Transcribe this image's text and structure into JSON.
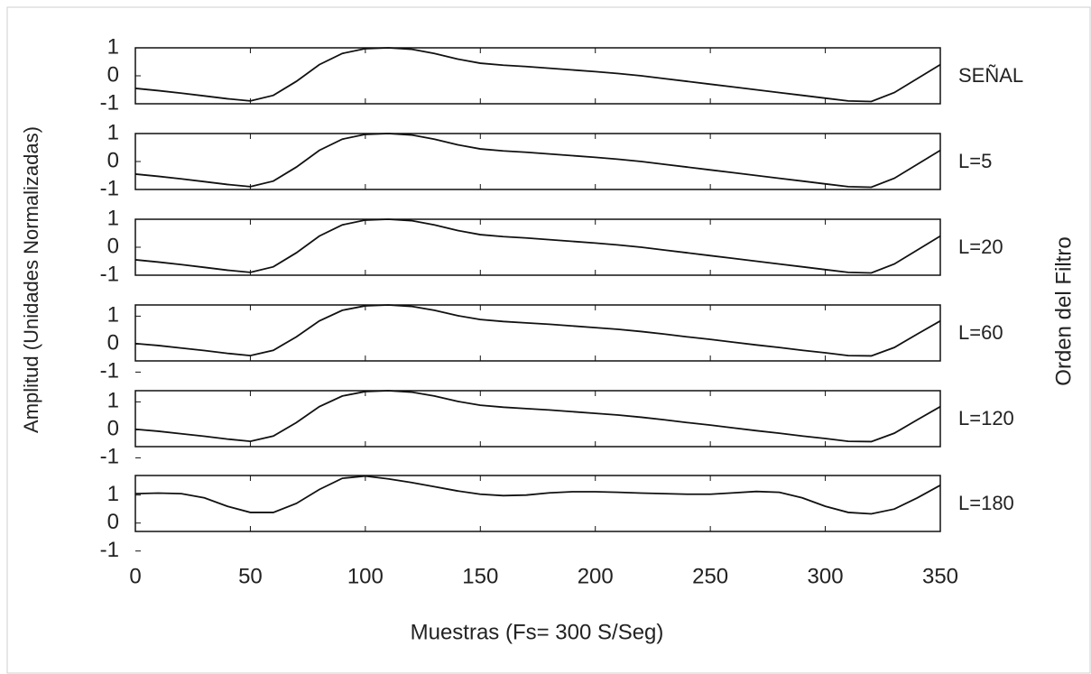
{
  "figure": {
    "xlabel": "Muestras (Fs= 300 S/Seg)",
    "ylabel": "Amplitud (Unidades Normalizadas)",
    "y2label": "Orden del Filtro",
    "xlim": [
      0,
      350
    ],
    "xticks": [
      0,
      50,
      100,
      150,
      200,
      250,
      300,
      350
    ],
    "x": [
      0,
      10,
      20,
      30,
      40,
      50,
      60,
      70,
      80,
      90,
      100,
      110,
      120,
      130,
      140,
      150,
      160,
      170,
      180,
      190,
      200,
      210,
      220,
      230,
      240,
      250,
      260,
      270,
      280,
      290,
      300,
      310,
      320,
      330,
      340,
      350
    ]
  },
  "chart_data": [
    {
      "type": "line",
      "label": "SEÑAL",
      "color": "#111111",
      "ylim": [
        -1,
        1
      ],
      "yticks": [
        1,
        0,
        -1
      ],
      "values": [
        -0.45,
        -0.53,
        -0.62,
        -0.72,
        -0.82,
        -0.9,
        -0.7,
        -0.2,
        0.4,
        0.8,
        0.97,
        1.0,
        0.95,
        0.8,
        0.6,
        0.45,
        0.38,
        0.33,
        0.27,
        0.21,
        0.15,
        0.08,
        0.0,
        -0.1,
        -0.2,
        -0.3,
        -0.4,
        -0.5,
        -0.6,
        -0.7,
        -0.8,
        -0.9,
        -0.92,
        -0.6,
        -0.1,
        0.4
      ]
    },
    {
      "type": "line",
      "label": "L=5",
      "color": "#111111",
      "ylim": [
        -1,
        1
      ],
      "yticks": [
        1,
        0,
        -1
      ],
      "values": [
        -0.45,
        -0.53,
        -0.62,
        -0.72,
        -0.82,
        -0.9,
        -0.7,
        -0.2,
        0.4,
        0.8,
        0.97,
        1.0,
        0.95,
        0.8,
        0.6,
        0.45,
        0.38,
        0.33,
        0.27,
        0.21,
        0.15,
        0.08,
        0.0,
        -0.1,
        -0.2,
        -0.3,
        -0.4,
        -0.5,
        -0.6,
        -0.7,
        -0.8,
        -0.9,
        -0.92,
        -0.6,
        -0.1,
        0.4
      ]
    },
    {
      "type": "line",
      "label": "L=20",
      "color": "#111111",
      "ylim": [
        -1,
        1
      ],
      "yticks": [
        1,
        0,
        -1
      ],
      "values": [
        -0.45,
        -0.53,
        -0.62,
        -0.72,
        -0.82,
        -0.9,
        -0.7,
        -0.2,
        0.4,
        0.8,
        0.97,
        1.0,
        0.95,
        0.8,
        0.6,
        0.45,
        0.38,
        0.33,
        0.27,
        0.21,
        0.15,
        0.08,
        0.0,
        -0.1,
        -0.2,
        -0.3,
        -0.4,
        -0.5,
        -0.6,
        -0.7,
        -0.8,
        -0.9,
        -0.92,
        -0.6,
        -0.1,
        0.4
      ]
    },
    {
      "type": "line",
      "label": "L=60",
      "color": "#111111",
      "ylim": [
        -0.6,
        1.4
      ],
      "yticks": [
        1,
        0,
        -1
      ],
      "values": [
        0.02,
        -0.05,
        -0.14,
        -0.23,
        -0.33,
        -0.41,
        -0.22,
        0.26,
        0.83,
        1.21,
        1.37,
        1.4,
        1.35,
        1.21,
        1.02,
        0.88,
        0.81,
        0.76,
        0.71,
        0.65,
        0.59,
        0.53,
        0.45,
        0.36,
        0.26,
        0.17,
        0.07,
        -0.03,
        -0.12,
        -0.22,
        -0.31,
        -0.41,
        -0.42,
        -0.12,
        0.36,
        0.83
      ]
    },
    {
      "type": "line",
      "label": "L=120",
      "color": "#111111",
      "ylim": [
        -0.6,
        1.4
      ],
      "yticks": [
        1,
        0,
        -1
      ],
      "values": [
        0.02,
        -0.05,
        -0.14,
        -0.23,
        -0.33,
        -0.41,
        -0.22,
        0.26,
        0.83,
        1.21,
        1.37,
        1.4,
        1.35,
        1.21,
        1.02,
        0.88,
        0.81,
        0.76,
        0.71,
        0.65,
        0.59,
        0.53,
        0.45,
        0.36,
        0.26,
        0.17,
        0.07,
        -0.03,
        -0.12,
        -0.22,
        -0.31,
        -0.41,
        -0.42,
        -0.12,
        0.36,
        0.83
      ]
    },
    {
      "type": "line",
      "label": "L=180",
      "color": "#111111",
      "ylim": [
        -0.3,
        1.7
      ],
      "yticks": [
        1,
        0,
        -1
      ],
      "values": [
        1.05,
        1.07,
        1.05,
        0.9,
        0.6,
        0.38,
        0.38,
        0.7,
        1.2,
        1.6,
        1.68,
        1.58,
        1.45,
        1.3,
        1.15,
        1.03,
        0.98,
        1.0,
        1.08,
        1.12,
        1.12,
        1.1,
        1.07,
        1.05,
        1.03,
        1.03,
        1.08,
        1.13,
        1.1,
        0.9,
        0.6,
        0.38,
        0.33,
        0.5,
        0.9,
        1.35
      ]
    }
  ]
}
